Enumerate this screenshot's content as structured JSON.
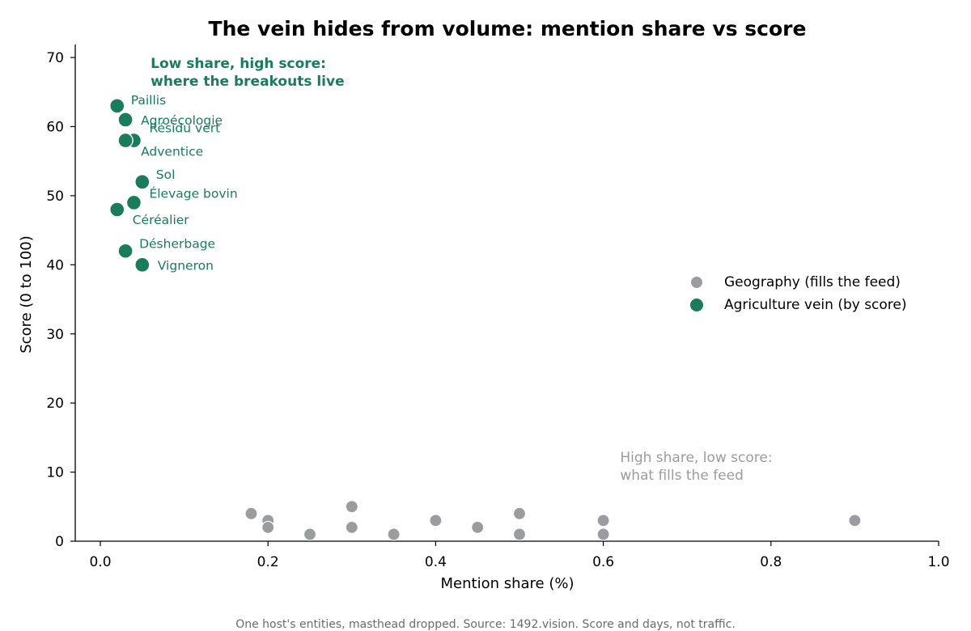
{
  "chart_data": {
    "type": "scatter",
    "title": "The vein hides from volume: mention share vs score",
    "xlabel": "Mention share (%)",
    "ylabel": "Score (0 to 100)",
    "xlim": [
      -0.03,
      1.0
    ],
    "ylim": [
      0,
      72
    ],
    "xticks": [
      0.0,
      0.2,
      0.4,
      0.6,
      0.8,
      1.0
    ],
    "xtick_labels": [
      "0.0",
      "0.2",
      "0.4",
      "0.6",
      "0.8",
      "1.0"
    ],
    "yticks": [
      0,
      10,
      20,
      30,
      40,
      50,
      60,
      70
    ],
    "ytick_labels": [
      "0",
      "10",
      "20",
      "30",
      "40",
      "50",
      "60",
      "70"
    ],
    "grid": false,
    "legend_position": "center-right",
    "series": [
      {
        "name": "Geography (fills the feed)",
        "color": "#9a9ca0",
        "points": [
          {
            "x": 0.18,
            "y": 4
          },
          {
            "x": 0.2,
            "y": 3
          },
          {
            "x": 0.2,
            "y": 2
          },
          {
            "x": 0.25,
            "y": 1
          },
          {
            "x": 0.3,
            "y": 5
          },
          {
            "x": 0.3,
            "y": 2
          },
          {
            "x": 0.35,
            "y": 1
          },
          {
            "x": 0.4,
            "y": 3
          },
          {
            "x": 0.45,
            "y": 2
          },
          {
            "x": 0.5,
            "y": 4
          },
          {
            "x": 0.5,
            "y": 1
          },
          {
            "x": 0.6,
            "y": 3
          },
          {
            "x": 0.6,
            "y": 1
          },
          {
            "x": 0.9,
            "y": 3
          }
        ]
      },
      {
        "name": "Agriculture vein (by score)",
        "color": "#1a7c5a",
        "points": [
          {
            "label": "Paillis",
            "x": 0.02,
            "y": 63
          },
          {
            "label": "Agroécologie",
            "x": 0.03,
            "y": 61
          },
          {
            "label": "Résidu vert",
            "x": 0.04,
            "y": 58
          },
          {
            "label": "Adventice",
            "x": 0.03,
            "y": 58
          },
          {
            "label": "Sol",
            "x": 0.05,
            "y": 52
          },
          {
            "label": "Élevage bovin",
            "x": 0.04,
            "y": 49
          },
          {
            "label": "Céréalier",
            "x": 0.02,
            "y": 48
          },
          {
            "label": "Désherbage",
            "x": 0.03,
            "y": 42
          },
          {
            "label": "Vigneron",
            "x": 0.05,
            "y": 40
          }
        ]
      }
    ],
    "annotations": [
      {
        "lines": [
          "Low share, high score:",
          "where the breakouts live"
        ],
        "x": 0.06,
        "y": 68.5,
        "color": "#1a7c5a",
        "bold": true
      },
      {
        "lines": [
          "High share, low score:",
          "what fills the feed"
        ],
        "x": 0.62,
        "y": 11.5,
        "color": "#9a9ca0",
        "bold": false
      }
    ]
  },
  "footnote": "One host's entities, masthead dropped. Source: 1492.vision. Score and days, not traffic."
}
